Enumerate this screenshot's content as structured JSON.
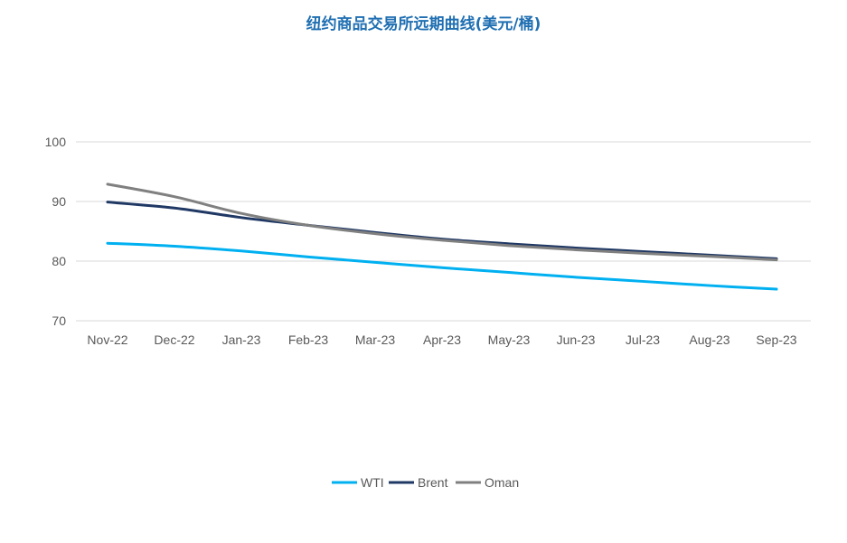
{
  "chart_data": {
    "type": "line",
    "title": "纽约商品交易所远期曲线(美元/桶)",
    "categories": [
      "Nov-22",
      "Dec-22",
      "Jan-23",
      "Feb-23",
      "Mar-23",
      "Apr-23",
      "May-23",
      "Jun-23",
      "Jul-23",
      "Aug-23",
      "Sep-23"
    ],
    "ylim": [
      70,
      100
    ],
    "yticks": [
      70,
      80,
      90,
      100
    ],
    "grid": true,
    "legend": "bottom",
    "series": [
      {
        "name": "WTI",
        "color": "#00b0f0",
        "values": [
          83.0,
          82.5,
          81.7,
          80.7,
          79.8,
          78.9,
          78.1,
          77.3,
          76.6,
          75.9,
          75.3
        ]
      },
      {
        "name": "Brent",
        "color": "#1f3864",
        "values": [
          89.9,
          88.9,
          87.3,
          86.0,
          84.8,
          83.7,
          82.9,
          82.2,
          81.6,
          81.0,
          80.4
        ]
      },
      {
        "name": "Oman",
        "color": "#808080",
        "values": [
          92.9,
          90.8,
          88.0,
          86.0,
          84.6,
          83.5,
          82.6,
          81.9,
          81.3,
          80.8,
          80.2
        ]
      }
    ]
  }
}
